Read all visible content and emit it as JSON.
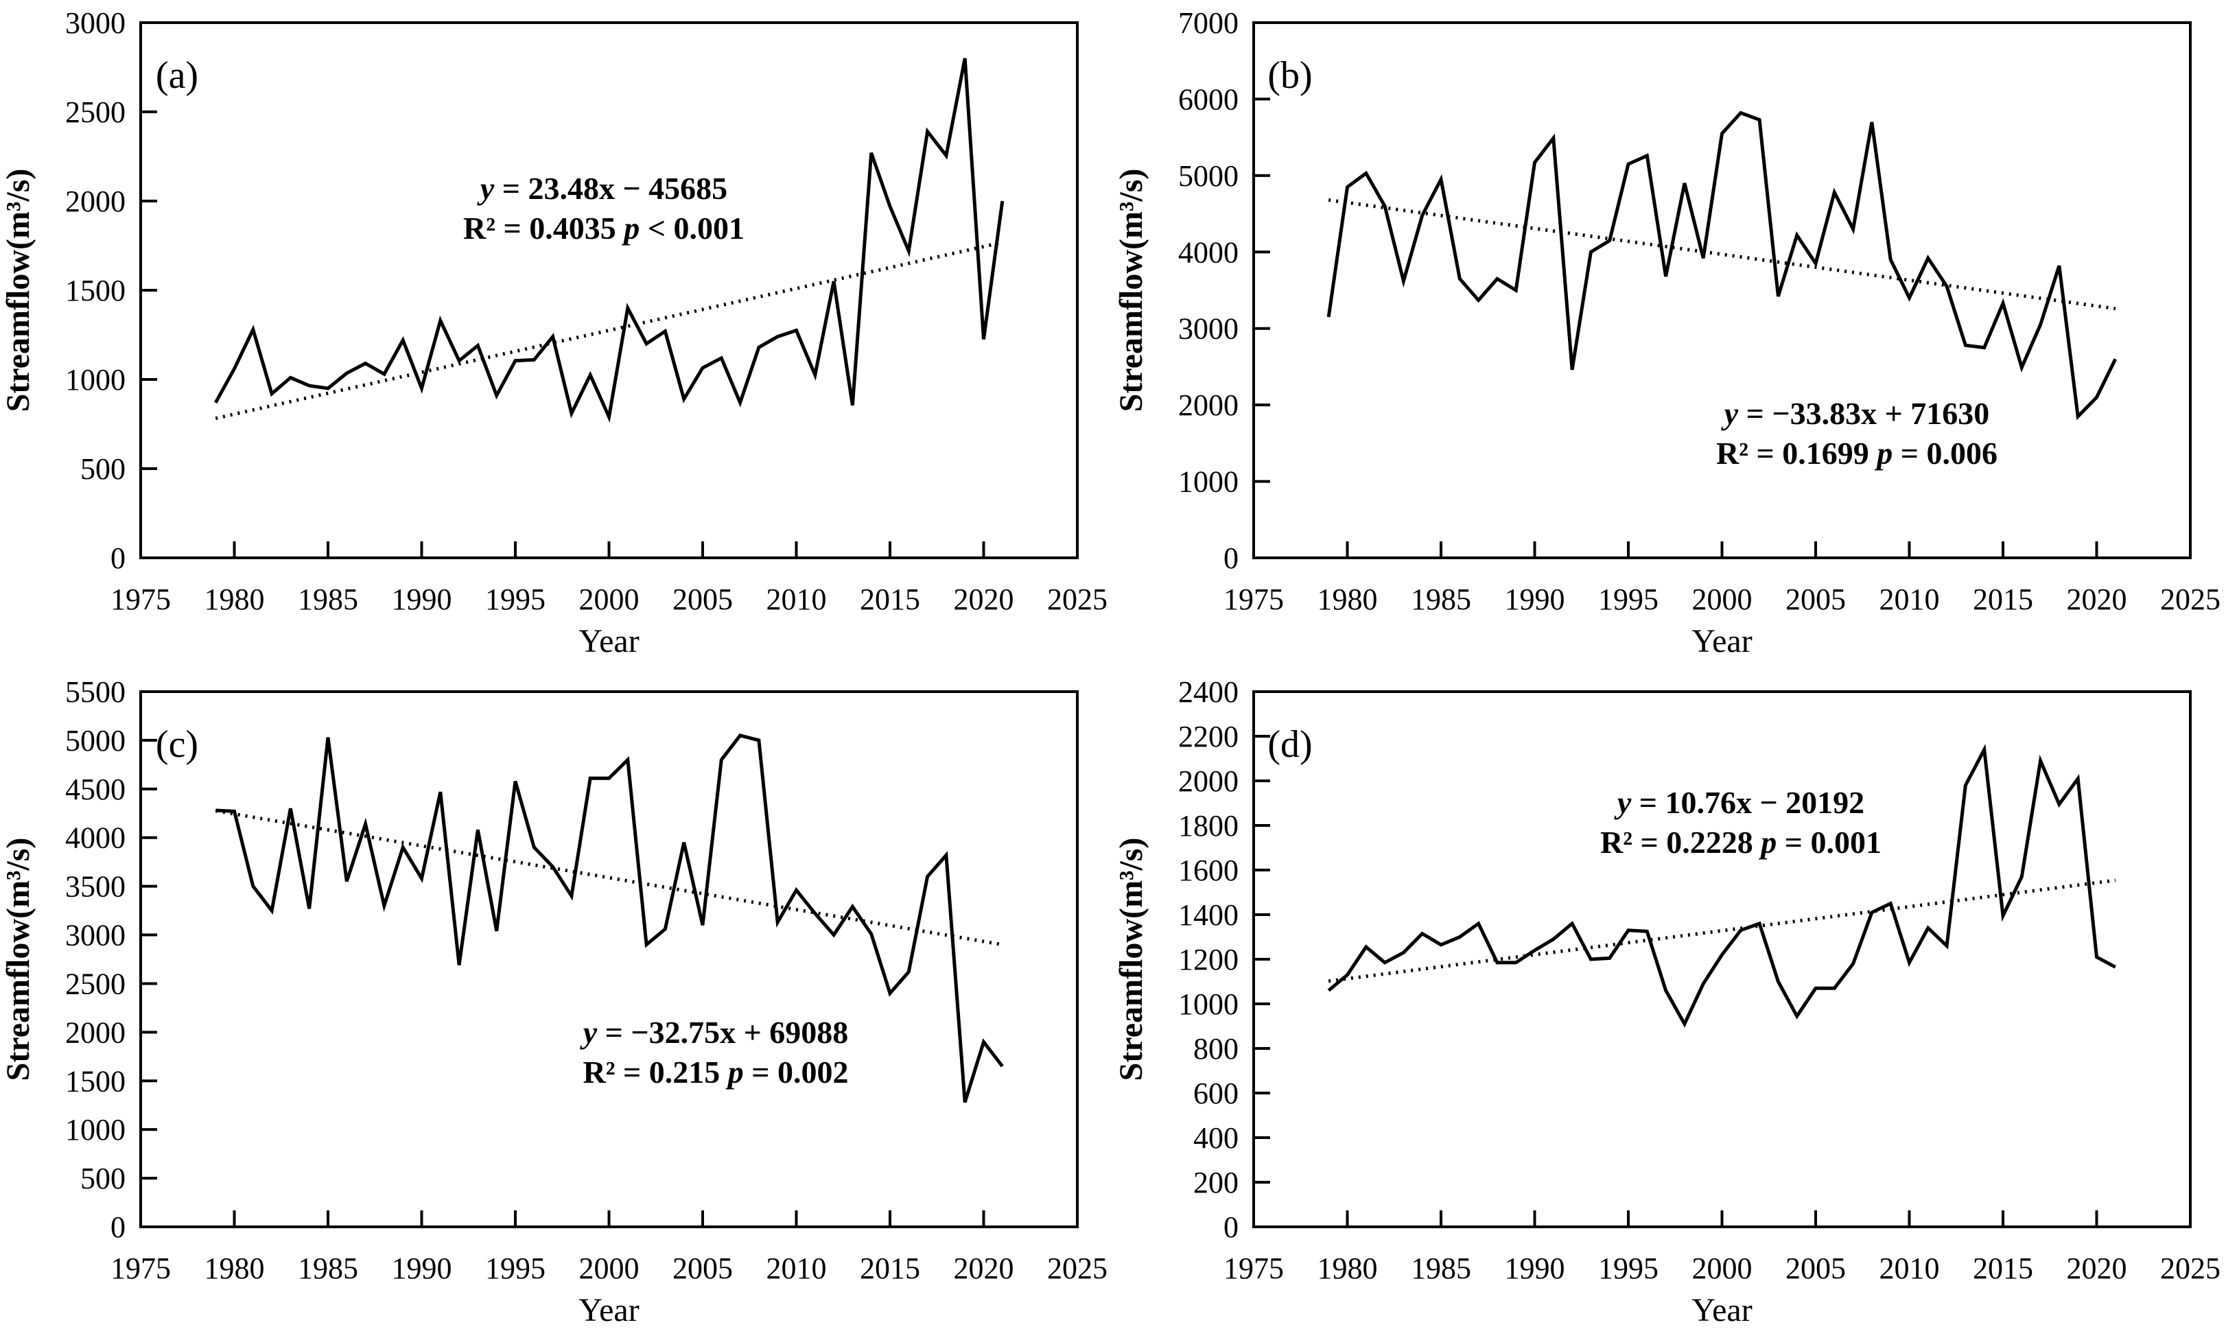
{
  "figure": {
    "background": "#ffffff",
    "line_color": "#000000",
    "text_color": "#000000",
    "xlabel": "Year",
    "ylabel": "Streamflow(m³/s)"
  },
  "chart_data": [
    {
      "type": "line",
      "panel_label": "(a)",
      "title": "",
      "xlabel": "Year",
      "ylabel": "Streamflow(m³/s)",
      "xlim": [
        1975,
        2025
      ],
      "xtick_step": 5,
      "ylim": [
        0,
        3000
      ],
      "ytick_step": 500,
      "grid": false,
      "legend": "none",
      "x": [
        1979,
        1980,
        1981,
        1982,
        1983,
        1984,
        1985,
        1986,
        1987,
        1988,
        1989,
        1990,
        1991,
        1992,
        1993,
        1994,
        1995,
        1996,
        1997,
        1998,
        1999,
        2000,
        2001,
        2002,
        2003,
        2004,
        2005,
        2006,
        2007,
        2008,
        2009,
        2010,
        2011,
        2012,
        2013,
        2014,
        2015,
        2016,
        2017,
        2018,
        2019,
        2020,
        2021
      ],
      "values": [
        870,
        1060,
        1280,
        920,
        1010,
        965,
        950,
        1035,
        1090,
        1030,
        1220,
        950,
        1330,
        1105,
        1190,
        910,
        1105,
        1110,
        1240,
        810,
        1025,
        790,
        1400,
        1200,
        1270,
        890,
        1065,
        1120,
        870,
        1180,
        1240,
        1275,
        1025,
        1550,
        855,
        2270,
        1970,
        1720,
        2390,
        2255,
        2800,
        1225,
        2000
      ],
      "trend": {
        "slope": 23.48,
        "intercept": -45685
      },
      "annotation": {
        "equation": "y = 23.48x − 45685",
        "r2": "R² = 0.4035",
        "p": "p < 0.001"
      }
    },
    {
      "type": "line",
      "panel_label": "(b)",
      "title": "",
      "xlabel": "Year",
      "ylabel": "Streamflow(m³/s)",
      "xlim": [
        1975,
        2025
      ],
      "xtick_step": 5,
      "ylim": [
        0,
        7000
      ],
      "ytick_step": 1000,
      "grid": false,
      "legend": "none",
      "x": [
        1979,
        1980,
        1981,
        1982,
        1983,
        1984,
        1985,
        1986,
        1987,
        1988,
        1989,
        1990,
        1991,
        1992,
        1993,
        1994,
        1995,
        1996,
        1997,
        1998,
        1999,
        2000,
        2001,
        2002,
        2003,
        2004,
        2005,
        2006,
        2007,
        2008,
        2009,
        2010,
        2011,
        2012,
        2013,
        2014,
        2015,
        2016,
        2017,
        2018,
        2019,
        2020,
        2021
      ],
      "values": [
        3150,
        4850,
        5030,
        4600,
        3620,
        4480,
        4950,
        3650,
        3370,
        3650,
        3500,
        5170,
        5490,
        2460,
        4000,
        4150,
        5150,
        5260,
        3680,
        4900,
        3920,
        5550,
        5820,
        5730,
        3420,
        4220,
        3850,
        4780,
        4300,
        5700,
        3900,
        3400,
        3920,
        3550,
        2780,
        2750,
        3330,
        2490,
        3050,
        3820,
        1850,
        2100,
        2600
      ],
      "trend": {
        "slope": -33.83,
        "intercept": 71630
      },
      "annotation": {
        "equation": "y = −33.83x + 71630",
        "r2": "R² = 0.1699",
        "p": "p = 0.006"
      }
    },
    {
      "type": "line",
      "panel_label": "(c)",
      "title": "",
      "xlabel": "Year",
      "ylabel": "Streamflow(m³/s)",
      "xlim": [
        1975,
        2025
      ],
      "xtick_step": 5,
      "ylim": [
        0,
        5500
      ],
      "ytick_step": 500,
      "grid": false,
      "legend": "none",
      "x": [
        1979,
        1980,
        1981,
        1982,
        1983,
        1984,
        1985,
        1986,
        1987,
        1988,
        1989,
        1990,
        1991,
        1992,
        1993,
        1994,
        1995,
        1996,
        1997,
        1998,
        1999,
        2000,
        2001,
        2002,
        2003,
        2004,
        2005,
        2006,
        2007,
        2008,
        2009,
        2010,
        2011,
        2012,
        2013,
        2014,
        2015,
        2016,
        2017,
        2018,
        2019,
        2020,
        2021
      ],
      "values": [
        4280,
        4270,
        3500,
        3250,
        4300,
        3270,
        5030,
        3550,
        4140,
        3300,
        3900,
        3580,
        4470,
        2690,
        4080,
        3040,
        4580,
        3900,
        3700,
        3400,
        4610,
        4610,
        4800,
        2900,
        3060,
        3950,
        3100,
        4800,
        5050,
        5000,
        3130,
        3460,
        3220,
        3000,
        3290,
        3010,
        2400,
        2620,
        3600,
        3820,
        1280,
        1900,
        1650
      ],
      "trend": {
        "slope": -32.75,
        "intercept": 69088
      },
      "annotation": {
        "equation": "y = −32.75x + 69088",
        "r2": "R² = 0.215",
        "p": "p = 0.002"
      }
    },
    {
      "type": "line",
      "panel_label": "(d)",
      "title": "",
      "xlabel": "Year",
      "ylabel": "Streamflow(m³/s)",
      "xlim": [
        1975,
        2025
      ],
      "xtick_step": 5,
      "ylim": [
        0,
        2400
      ],
      "ytick_step": 200,
      "grid": false,
      "legend": "none",
      "x": [
        1979,
        1980,
        1981,
        1982,
        1983,
        1984,
        1985,
        1986,
        1987,
        1988,
        1989,
        1990,
        1991,
        1992,
        1993,
        1994,
        1995,
        1996,
        1997,
        1998,
        1999,
        2000,
        2001,
        2002,
        2003,
        2004,
        2005,
        2006,
        2007,
        2008,
        2009,
        2010,
        2011,
        2012,
        2013,
        2014,
        2015,
        2016,
        2017,
        2018,
        2019,
        2020,
        2021
      ],
      "values": [
        1060,
        1130,
        1255,
        1185,
        1230,
        1315,
        1265,
        1300,
        1360,
        1185,
        1185,
        1240,
        1290,
        1360,
        1200,
        1205,
        1330,
        1325,
        1060,
        910,
        1090,
        1220,
        1330,
        1360,
        1100,
        945,
        1070,
        1070,
        1180,
        1410,
        1450,
        1185,
        1340,
        1260,
        1980,
        2140,
        1395,
        1570,
        2090,
        1895,
        2010,
        1210,
        1165
      ],
      "trend": {
        "slope": 10.76,
        "intercept": -20192
      },
      "annotation": {
        "equation": "y = 10.76x − 20192",
        "r2": "R² = 0.2228",
        "p": "p = 0.001"
      }
    }
  ]
}
